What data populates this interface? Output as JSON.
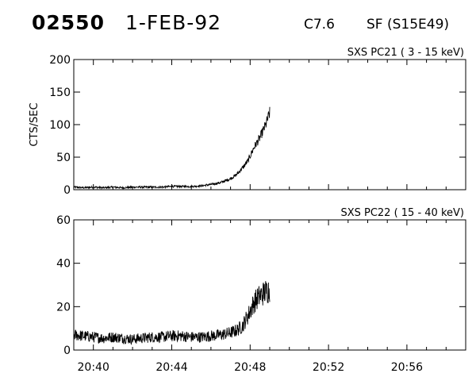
{
  "header": {
    "event_id": "02550",
    "date": "1-FEB-92",
    "goes_class": "C7.6",
    "location": "SF (S15E49)"
  },
  "chart_data": [
    {
      "type": "line",
      "title": "SXS PC21  (  3 - 15 keV)",
      "ylabel": "CTS/SEC",
      "xlabel": "",
      "xlim": [
        "20:39",
        "20:59"
      ],
      "ylim": [
        0,
        200
      ],
      "yticks": [
        0,
        50,
        100,
        150,
        200
      ],
      "series": [
        {
          "x": [
            "20:39.0",
            "20:39.5",
            "20:40.0",
            "20:40.5",
            "20:41.0",
            "20:41.5",
            "20:42.0",
            "20:42.5",
            "20:43.0",
            "20:43.5",
            "20:44.0",
            "20:44.5",
            "20:45.0",
            "20:45.5",
            "20:46.0",
            "20:46.5",
            "20:47.0",
            "20:47.3",
            "20:47.6",
            "20:47.9",
            "20:48.2",
            "20:48.5",
            "20:48.8",
            "20:49.0"
          ],
          "values": [
            4,
            3,
            4,
            3,
            4,
            3,
            4,
            4,
            4,
            4,
            5,
            5,
            5,
            6,
            8,
            11,
            17,
            23,
            33,
            45,
            65,
            80,
            100,
            118
          ]
        }
      ]
    },
    {
      "type": "line",
      "title": "SXS PC22  ( 15 - 40 keV)",
      "ylabel": "",
      "xlabel": "",
      "xlim": [
        "20:39",
        "20:59"
      ],
      "ylim": [
        0,
        60
      ],
      "yticks": [
        0,
        20,
        40,
        60
      ],
      "xticks": [
        "20:40",
        "20:44",
        "20:48",
        "20:52",
        "20:56"
      ],
      "series": [
        {
          "x": [
            "20:39.0",
            "20:39.5",
            "20:40.0",
            "20:40.5",
            "20:41.0",
            "20:41.5",
            "20:42.0",
            "20:42.5",
            "20:43.0",
            "20:43.5",
            "20:44.0",
            "20:44.5",
            "20:45.0",
            "20:45.5",
            "20:46.0",
            "20:46.5",
            "20:47.0",
            "20:47.3",
            "20:47.6",
            "20:47.9",
            "20:48.2",
            "20:48.5",
            "20:48.8",
            "20:49.0"
          ],
          "values": [
            7,
            6.5,
            6,
            5.5,
            6,
            5.5,
            5,
            5.5,
            6,
            6,
            6.5,
            6.5,
            6,
            6,
            6.5,
            7,
            8,
            9,
            11,
            16,
            22,
            25,
            27,
            28
          ]
        }
      ]
    }
  ]
}
